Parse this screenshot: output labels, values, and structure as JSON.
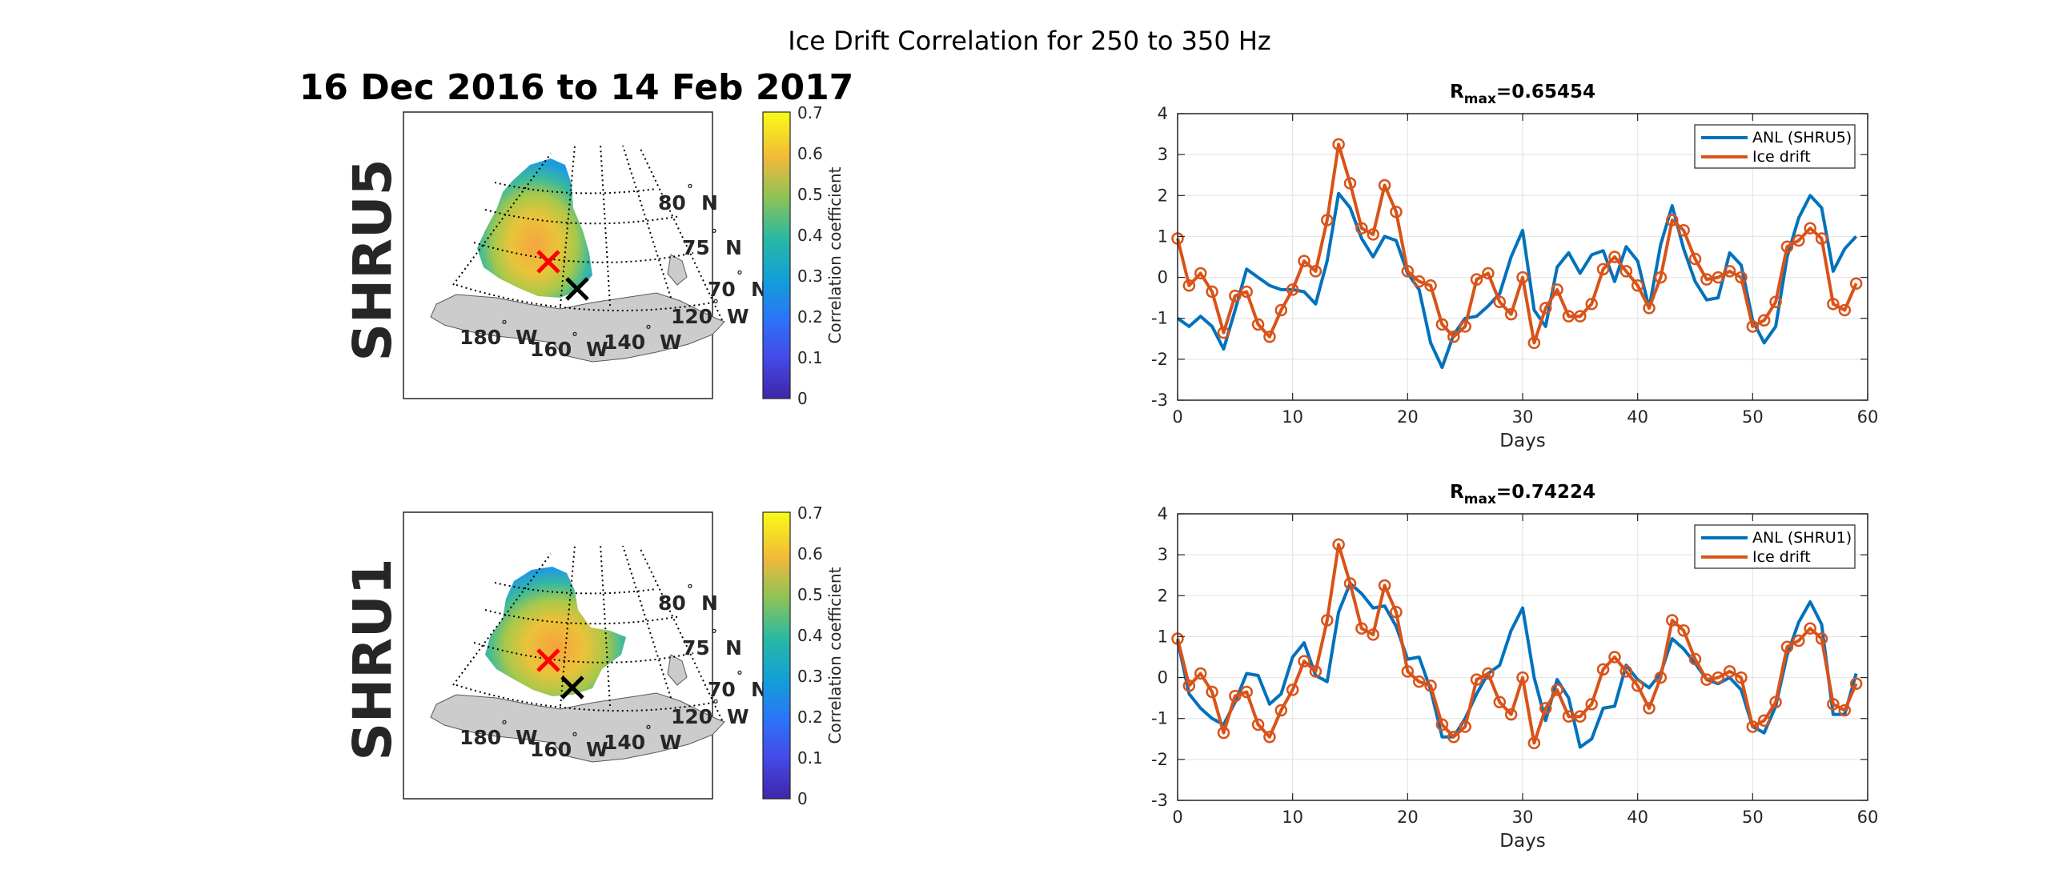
{
  "figure": {
    "suptitle": "Ice Drift Correlation for 250 to 350 Hz",
    "date_title": "16 Dec 2016 to 14 Feb 2017"
  },
  "maps": [
    {
      "station_label": "SHRU5",
      "colorbar_label": "Correlation coefficient",
      "colorbar_ticks": [
        "0",
        "0.1",
        "0.2",
        "0.3",
        "0.4",
        "0.5",
        "0.6",
        "0.7"
      ],
      "lat_labels": [
        "80",
        "75",
        "70"
      ],
      "lat_suffix": "N",
      "lon_labels": [
        "180",
        "160",
        "140",
        "120"
      ],
      "lon_suffix": "W",
      "degree_symbol": "°",
      "markers": {
        "max_correlation": "red-x",
        "station": "black-x"
      }
    },
    {
      "station_label": "SHRU1",
      "colorbar_label": "Correlation coefficient",
      "colorbar_ticks": [
        "0",
        "0.1",
        "0.2",
        "0.3",
        "0.4",
        "0.5",
        "0.6",
        "0.7"
      ],
      "lat_labels": [
        "80",
        "75",
        "70"
      ],
      "lat_suffix": "N",
      "lon_labels": [
        "180",
        "160",
        "140",
        "120"
      ],
      "lon_suffix": "W",
      "degree_symbol": "°",
      "markers": {
        "max_correlation": "red-x",
        "station": "black-x"
      }
    }
  ],
  "colors": {
    "anl": "#0072BD",
    "ice": "#D95319",
    "land": "#CCCCCC",
    "grid": "#E6E6E6"
  },
  "chart_data": [
    {
      "type": "line",
      "title_r": "R",
      "title_sub": "max",
      "title_value": "=0.65454",
      "xlabel": "Days",
      "ylabel": "",
      "xlim": [
        0,
        60
      ],
      "ylim": [
        -3,
        4
      ],
      "xticks": [
        0,
        10,
        20,
        30,
        40,
        50,
        60
      ],
      "yticks": [
        -3,
        -2,
        -1,
        0,
        1,
        2,
        3,
        4
      ],
      "grid": true,
      "legend_position": "top-right",
      "series": [
        {
          "name": "ANL (SHRU5)",
          "marker": "none",
          "x": [
            0,
            1,
            2,
            3,
            4,
            5,
            6,
            7,
            8,
            9,
            10,
            11,
            12,
            13,
            14,
            15,
            16,
            17,
            18,
            19,
            20,
            21,
            22,
            23,
            24,
            25,
            26,
            27,
            28,
            29,
            30,
            31,
            32,
            33,
            34,
            35,
            36,
            37,
            38,
            39,
            40,
            41,
            42,
            43,
            44,
            45,
            46,
            47,
            48,
            49,
            50,
            51,
            52,
            53,
            54,
            55,
            56,
            57,
            58,
            59
          ],
          "values": [
            -1.0,
            -1.2,
            -0.95,
            -1.2,
            -1.75,
            -0.8,
            0.2,
            0.0,
            -0.2,
            -0.3,
            -0.3,
            -0.35,
            -0.65,
            0.4,
            2.05,
            1.7,
            0.95,
            0.5,
            1.0,
            0.9,
            0.1,
            -0.3,
            -1.6,
            -2.2,
            -1.4,
            -1.0,
            -0.95,
            -0.7,
            -0.4,
            0.5,
            1.15,
            -0.8,
            -1.2,
            0.25,
            0.6,
            0.1,
            0.55,
            0.65,
            -0.1,
            0.75,
            0.4,
            -0.75,
            0.8,
            1.75,
            0.7,
            -0.1,
            -0.55,
            -0.5,
            0.6,
            0.3,
            -1.05,
            -1.6,
            -1.2,
            0.5,
            1.45,
            2.0,
            1.7,
            0.15,
            0.7,
            1.0
          ]
        },
        {
          "name": "Ice drift",
          "marker": "o",
          "x": [
            0,
            1,
            2,
            3,
            4,
            5,
            6,
            7,
            8,
            9,
            10,
            11,
            12,
            13,
            14,
            15,
            16,
            17,
            18,
            19,
            20,
            21,
            22,
            23,
            24,
            25,
            26,
            27,
            28,
            29,
            30,
            31,
            32,
            33,
            34,
            35,
            36,
            37,
            38,
            39,
            40,
            41,
            42,
            43,
            44,
            45,
            46,
            47,
            48,
            49,
            50,
            51,
            52,
            53,
            54,
            55,
            56,
            57,
            58,
            59
          ],
          "values": [
            0.95,
            -0.2,
            0.1,
            -0.35,
            -1.35,
            -0.45,
            -0.35,
            -1.15,
            -1.45,
            -0.8,
            -0.3,
            0.4,
            0.15,
            1.4,
            3.25,
            2.3,
            1.2,
            1.05,
            2.25,
            1.6,
            0.15,
            -0.1,
            -0.2,
            -1.15,
            -1.45,
            -1.2,
            -0.05,
            0.1,
            -0.6,
            -0.9,
            0.0,
            -1.6,
            -0.75,
            -0.3,
            -0.95,
            -0.95,
            -0.65,
            0.2,
            0.5,
            0.15,
            -0.2,
            -0.75,
            0.0,
            1.4,
            1.15,
            0.45,
            -0.05,
            0.0,
            0.15,
            0.0,
            -1.2,
            -1.05,
            -0.6,
            0.75,
            0.9,
            1.2,
            0.95,
            -0.65,
            -0.8,
            -0.15
          ]
        }
      ]
    },
    {
      "type": "line",
      "title_r": "R",
      "title_sub": "max",
      "title_value": "=0.74224",
      "xlabel": "Days",
      "ylabel": "",
      "xlim": [
        0,
        60
      ],
      "ylim": [
        -3,
        4
      ],
      "xticks": [
        0,
        10,
        20,
        30,
        40,
        50,
        60
      ],
      "yticks": [
        -3,
        -2,
        -1,
        0,
        1,
        2,
        3,
        4
      ],
      "grid": true,
      "legend_position": "top-right",
      "series": [
        {
          "name": "ANL (SHRU1)",
          "marker": "none",
          "x": [
            0,
            1,
            2,
            3,
            4,
            5,
            6,
            7,
            8,
            9,
            10,
            11,
            12,
            13,
            14,
            15,
            16,
            17,
            18,
            19,
            20,
            21,
            22,
            23,
            24,
            25,
            26,
            27,
            28,
            29,
            30,
            31,
            32,
            33,
            34,
            35,
            36,
            37,
            38,
            39,
            40,
            41,
            42,
            43,
            44,
            45,
            46,
            47,
            48,
            49,
            50,
            51,
            52,
            53,
            54,
            55,
            56,
            57,
            58,
            59
          ],
          "values": [
            0.9,
            -0.4,
            -0.75,
            -1.0,
            -1.15,
            -0.6,
            0.1,
            0.05,
            -0.65,
            -0.4,
            0.5,
            0.85,
            0.05,
            -0.1,
            1.6,
            2.3,
            2.05,
            1.7,
            1.75,
            1.25,
            0.45,
            0.5,
            -0.3,
            -1.45,
            -1.45,
            -1.0,
            -0.4,
            0.1,
            0.3,
            1.15,
            1.7,
            0.0,
            -1.05,
            -0.05,
            -0.5,
            -1.7,
            -1.5,
            -0.75,
            -0.7,
            0.3,
            -0.05,
            -0.25,
            0.1,
            0.95,
            0.7,
            0.35,
            -0.05,
            -0.15,
            0.0,
            -0.3,
            -1.2,
            -1.35,
            -0.7,
            0.55,
            1.35,
            1.85,
            1.3,
            -0.9,
            -0.9,
            0.1
          ]
        },
        {
          "name": "Ice drift",
          "marker": "o",
          "x": [
            0,
            1,
            2,
            3,
            4,
            5,
            6,
            7,
            8,
            9,
            10,
            11,
            12,
            13,
            14,
            15,
            16,
            17,
            18,
            19,
            20,
            21,
            22,
            23,
            24,
            25,
            26,
            27,
            28,
            29,
            30,
            31,
            32,
            33,
            34,
            35,
            36,
            37,
            38,
            39,
            40,
            41,
            42,
            43,
            44,
            45,
            46,
            47,
            48,
            49,
            50,
            51,
            52,
            53,
            54,
            55,
            56,
            57,
            58,
            59
          ],
          "values": [
            0.95,
            -0.2,
            0.1,
            -0.35,
            -1.35,
            -0.45,
            -0.35,
            -1.15,
            -1.45,
            -0.8,
            -0.3,
            0.4,
            0.15,
            1.4,
            3.25,
            2.3,
            1.2,
            1.05,
            2.25,
            1.6,
            0.15,
            -0.1,
            -0.2,
            -1.15,
            -1.45,
            -1.2,
            -0.05,
            0.1,
            -0.6,
            -0.9,
            0.0,
            -1.6,
            -0.75,
            -0.3,
            -0.95,
            -0.95,
            -0.65,
            0.2,
            0.5,
            0.15,
            -0.2,
            -0.75,
            0.0,
            1.4,
            1.15,
            0.45,
            -0.05,
            0.0,
            0.15,
            0.0,
            -1.2,
            -1.05,
            -0.6,
            0.75,
            0.9,
            1.2,
            0.95,
            -0.65,
            -0.8,
            -0.15
          ]
        }
      ]
    }
  ]
}
